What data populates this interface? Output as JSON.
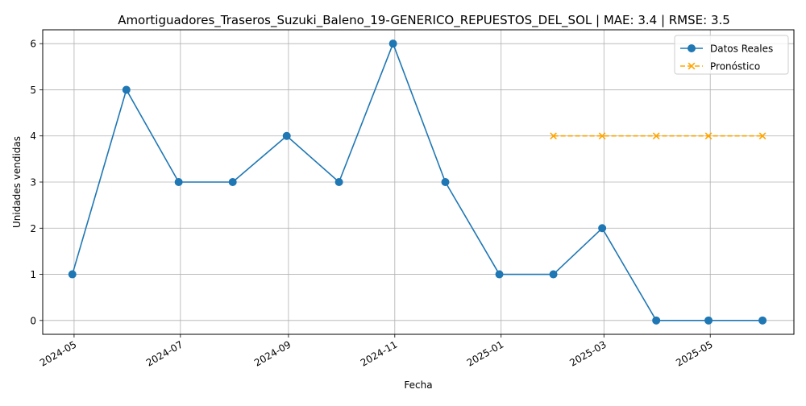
{
  "chart_data": {
    "type": "line",
    "title": "Amortiguadores_Traseros_Suzuki_Baleno_19-GENERICO_REPUESTOS_DEL_SOL | MAE: 3.4 | RMSE: 3.5",
    "xlabel": "Fecha",
    "ylabel": "Unidades vendidas",
    "xlim": [
      "2024-04-13",
      "2025-06-18"
    ],
    "ylim": [
      -0.3,
      6.3
    ],
    "x_ticks": [
      "2024-05",
      "2024-07",
      "2024-09",
      "2024-11",
      "2025-01",
      "2025-03",
      "2025-05"
    ],
    "y_ticks": [
      0,
      1,
      2,
      3,
      4,
      5,
      6
    ],
    "grid": true,
    "legend_position": "top-right",
    "series": [
      {
        "name": "Datos Reales",
        "color": "#1f77b4",
        "style": "solid",
        "marker": "circle",
        "x": [
          "2024-04-30",
          "2024-05-31",
          "2024-06-30",
          "2024-07-31",
          "2024-08-31",
          "2024-09-30",
          "2024-10-31",
          "2024-11-30",
          "2024-12-31",
          "2025-01-31",
          "2025-02-28",
          "2025-03-31",
          "2025-04-30",
          "2025-05-31"
        ],
        "values": [
          1,
          5,
          3,
          3,
          4,
          3,
          6,
          3,
          1,
          1,
          2,
          0,
          0,
          0
        ]
      },
      {
        "name": "Pronóstico",
        "color": "#ffa500",
        "style": "dashed",
        "marker": "x",
        "x": [
          "2025-01-31",
          "2025-02-28",
          "2025-03-31",
          "2025-04-30",
          "2025-05-31"
        ],
        "values": [
          4,
          4,
          4,
          4,
          4
        ]
      }
    ]
  }
}
